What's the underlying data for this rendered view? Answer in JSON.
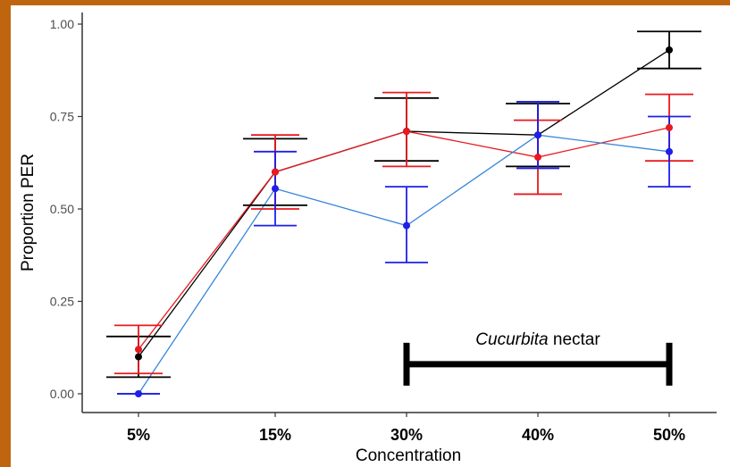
{
  "chart_data": {
    "type": "line",
    "title": "",
    "xlabel": "Concentration",
    "ylabel": "Proportion PER",
    "categories": [
      "5%",
      "15%",
      "30%",
      "40%",
      "50%"
    ],
    "ylim": [
      0,
      1.0
    ],
    "yticks": [
      0.0,
      0.25,
      0.5,
      0.75,
      1.0
    ],
    "ytick_labels": [
      "0.00",
      "0.25",
      "0.50",
      "0.75",
      "1.00"
    ],
    "grid": false,
    "legend": false,
    "series": [
      {
        "color": "#000000",
        "values": [
          0.1,
          0.6,
          0.71,
          0.7,
          0.93
        ],
        "err_low": [
          0.045,
          0.51,
          0.63,
          0.615,
          0.88
        ],
        "err_high": [
          0.155,
          0.69,
          0.8,
          0.785,
          0.98
        ]
      },
      {
        "color": "#e8191f",
        "values": [
          0.12,
          0.6,
          0.71,
          0.64,
          0.72
        ],
        "err_low": [
          0.055,
          0.5,
          0.615,
          0.54,
          0.63
        ],
        "err_high": [
          0.185,
          0.7,
          0.815,
          0.74,
          0.81
        ]
      },
      {
        "color": "#1f1fe8",
        "line_color": "#3a86d8",
        "values": [
          0.0,
          0.555,
          0.455,
          0.7,
          0.655
        ],
        "err_low": [
          0.0,
          0.455,
          0.355,
          0.61,
          0.56
        ],
        "err_high": [
          0.0,
          0.655,
          0.56,
          0.79,
          0.75
        ]
      }
    ],
    "annotation": {
      "italic_text": "Cucurbita",
      "text": " nectar",
      "from_category": "30%",
      "to_category": "50%",
      "y": 0.08
    }
  }
}
